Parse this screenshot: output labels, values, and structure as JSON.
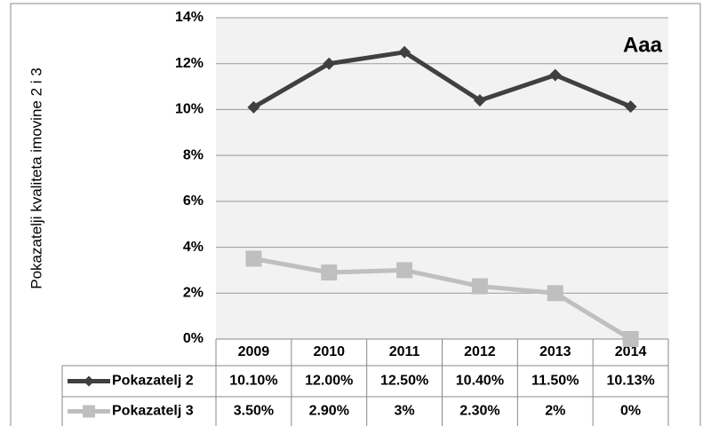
{
  "chart_data": {
    "type": "line",
    "y_label": "Pokazatelji kvaliteta imovine 2 i 3",
    "annotation": "Aaa",
    "categories": [
      "2009",
      "2010",
      "2011",
      "2012",
      "2013",
      "2014"
    ],
    "series": [
      {
        "name": "Pokazatelj 2",
        "color": "#404040",
        "marker": "diamond",
        "values": [
          10.1,
          12.0,
          12.5,
          10.4,
          11.5,
          10.13
        ],
        "value_labels": [
          "10.10%",
          "12.00%",
          "12.50%",
          "10.40%",
          "11.50%",
          "10.13%"
        ]
      },
      {
        "name": "Pokazatelj 3",
        "color": "#bfbfbf",
        "marker": "square",
        "values": [
          3.5,
          2.9,
          3,
          2.3,
          2,
          0
        ],
        "value_labels": [
          "3.50%",
          "2.90%",
          "3%",
          "2.30%",
          "2%",
          "0%"
        ]
      }
    ],
    "ylim": [
      0,
      14
    ],
    "yticks": [
      {
        "value": 0,
        "label": "0%"
      },
      {
        "value": 2,
        "label": "2%"
      },
      {
        "value": 4,
        "label": "4%"
      },
      {
        "value": 6,
        "label": "6%"
      },
      {
        "value": 8,
        "label": "8%"
      },
      {
        "value": 10,
        "label": "10%"
      },
      {
        "value": 12,
        "label": "12%"
      },
      {
        "value": 14,
        "label": "14%"
      }
    ],
    "grid": true
  }
}
